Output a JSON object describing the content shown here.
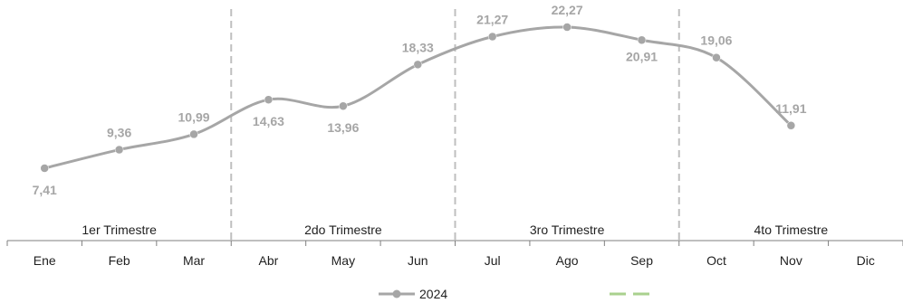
{
  "chart_data": {
    "type": "line",
    "categories": [
      "Ene",
      "Feb",
      "Mar",
      "Abr",
      "May",
      "Jun",
      "Jul",
      "Ago",
      "Sep",
      "Oct",
      "Nov",
      "Dic"
    ],
    "series": [
      {
        "name": "2024",
        "values": [
          7.41,
          9.36,
          10.99,
          14.63,
          13.96,
          18.33,
          21.27,
          22.27,
          20.91,
          19.06,
          11.91,
          null
        ],
        "labels": [
          "7,41",
          "9,36",
          "10,99",
          "14,63",
          "13,96",
          "18,33",
          "21,27",
          "22,27",
          "20,91",
          "19,06",
          "11,91",
          ""
        ],
        "color": "#a6a6a6"
      }
    ],
    "quarters": [
      "1er Trimestre",
      "2do Trimestre",
      "3ro Trimestre",
      "4to Trimestre"
    ],
    "legend": {
      "position": "bottom",
      "second_entry_color": "#a9d18e"
    },
    "colors": {
      "line": "#a6a6a6",
      "axis": "#7f7f7f",
      "divider": "#bfbfbf",
      "text": "#1f1f1f"
    },
    "grid": false
  }
}
